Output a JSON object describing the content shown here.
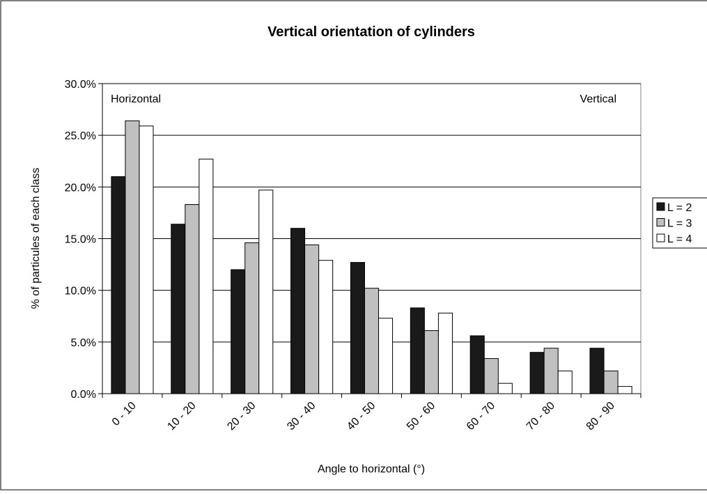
{
  "chart_data": {
    "type": "bar",
    "title": "Vertical orientation of cylinders",
    "x_label": "Angle to horizontal (°)",
    "y_label": "% of particules of each class",
    "annotations": [
      "Horizontal",
      "Vertical"
    ],
    "categories": [
      "0 - 10",
      "10 - 20",
      "20 - 30",
      "30 - 40",
      "40 - 50",
      "50 - 60",
      "60 - 70",
      "70 - 80",
      "80 - 90"
    ],
    "series": [
      {
        "name": "L = 2",
        "color": "#1a1a1a",
        "values": [
          21.0,
          16.4,
          12.0,
          16.0,
          12.7,
          8.3,
          5.6,
          4.0,
          4.4
        ]
      },
      {
        "name": "L = 3",
        "color": "#c0c0c0",
        "values": [
          26.4,
          18.3,
          14.6,
          14.4,
          10.2,
          6.1,
          3.4,
          4.4,
          2.2
        ]
      },
      {
        "name": "L = 4",
        "color": "#ffffff",
        "values": [
          25.9,
          22.7,
          19.7,
          12.9,
          7.3,
          7.8,
          1.0,
          2.2,
          0.7
        ]
      }
    ],
    "ylim": [
      0,
      30
    ],
    "yticks": [
      {
        "value": 0,
        "label": "0.0%"
      },
      {
        "value": 5,
        "label": "5.0%"
      },
      {
        "value": 10,
        "label": "10.0%"
      },
      {
        "value": 15,
        "label": "15.0%"
      },
      {
        "value": 20,
        "label": "20.0%"
      },
      {
        "value": 25,
        "label": "25.0%"
      },
      {
        "value": 30,
        "label": "30.0%"
      }
    ],
    "grid": true,
    "legend": "right"
  }
}
